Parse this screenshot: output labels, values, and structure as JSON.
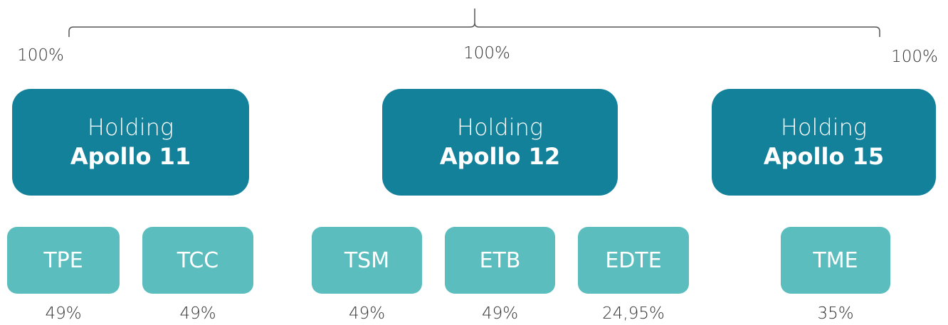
{
  "top_percentages": [
    "100%",
    "100%",
    "100%"
  ],
  "holdings": [
    {
      "prefix": "Holding",
      "name": "Apollo 11",
      "subsidiaries": [
        {
          "label": "TPE",
          "share": "49%"
        },
        {
          "label": "TCC",
          "share": "49%"
        }
      ]
    },
    {
      "prefix": "Holding",
      "name": "Apollo 12",
      "subsidiaries": [
        {
          "label": "TSM",
          "share": "49%"
        },
        {
          "label": "ETB",
          "share": "49%"
        },
        {
          "label": "EDTE",
          "share": "24,95%"
        }
      ]
    },
    {
      "prefix": "Holding",
      "name": "Apollo 15",
      "subsidiaries": [
        {
          "label": "TME",
          "share": "35%"
        }
      ]
    }
  ]
}
